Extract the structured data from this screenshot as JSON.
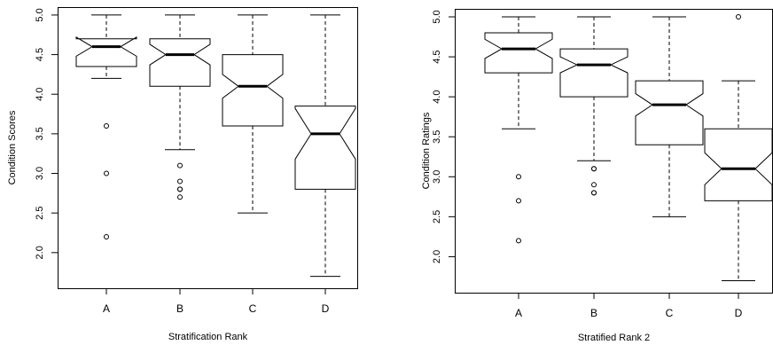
{
  "chart_data": [
    {
      "type": "box",
      "notched": true,
      "xlabel": "Stratification Rank",
      "ylabel": "Condition Scores",
      "ylim": [
        1.55,
        5.1
      ],
      "yticks": [
        "2.0",
        "2.5",
        "3.0",
        "3.5",
        "4.0",
        "4.5",
        "5.0"
      ],
      "categories": [
        "A",
        "B",
        "C",
        "D"
      ],
      "boxes": [
        {
          "name": "A",
          "whisker_low": 4.2,
          "q1": 4.35,
          "median": 4.6,
          "q3": 4.7,
          "whisker_high": 5.0,
          "notch_low": 4.48,
          "notch_high": 4.72,
          "outliers": [
            3.6,
            3.0,
            2.2
          ]
        },
        {
          "name": "B",
          "whisker_low": 3.3,
          "q1": 4.1,
          "median": 4.5,
          "q3": 4.7,
          "whisker_high": 5.0,
          "notch_low": 4.37,
          "notch_high": 4.63,
          "outliers": [
            3.1,
            2.9,
            2.8,
            2.8,
            2.7
          ]
        },
        {
          "name": "C",
          "whisker_low": 2.5,
          "q1": 3.6,
          "median": 4.1,
          "q3": 4.5,
          "whisker_high": 5.0,
          "notch_low": 3.95,
          "notch_high": 4.25,
          "outliers": []
        },
        {
          "name": "D",
          "whisker_low": 1.7,
          "q1": 2.8,
          "median": 3.5,
          "q3": 3.85,
          "whisker_high": 5.0,
          "notch_low": 3.18,
          "notch_high": 3.82,
          "outliers": []
        }
      ]
    },
    {
      "type": "box",
      "notched": true,
      "xlabel": "Stratified Rank 2",
      "ylabel": "Condition Ratings",
      "ylim": [
        1.55,
        5.1
      ],
      "yticks": [
        "2.0",
        "2.5",
        "3.0",
        "3.5",
        "4.0",
        "4.5",
        "5.0"
      ],
      "categories": [
        "A",
        "B",
        "C",
        "D"
      ],
      "boxes": [
        {
          "name": "A",
          "whisker_low": 3.6,
          "q1": 4.3,
          "median": 4.6,
          "q3": 4.8,
          "whisker_high": 5.0,
          "notch_low": 4.48,
          "notch_high": 4.72,
          "outliers": [
            3.0,
            2.7,
            2.2
          ]
        },
        {
          "name": "B",
          "whisker_low": 3.2,
          "q1": 4.0,
          "median": 4.4,
          "q3": 4.6,
          "whisker_high": 5.0,
          "notch_low": 4.3,
          "notch_high": 4.5,
          "outliers": [
            3.1,
            3.1,
            2.9,
            2.8,
            2.8
          ]
        },
        {
          "name": "C",
          "whisker_low": 2.5,
          "q1": 3.4,
          "median": 3.9,
          "q3": 4.2,
          "whisker_high": 5.0,
          "notch_low": 3.76,
          "notch_high": 4.04,
          "outliers": []
        },
        {
          "name": "D",
          "whisker_low": 1.7,
          "q1": 2.7,
          "median": 3.1,
          "q3": 3.6,
          "whisker_high": 4.2,
          "notch_low": 2.9,
          "notch_high": 3.3,
          "outliers": [
            5.0
          ]
        }
      ]
    }
  ]
}
